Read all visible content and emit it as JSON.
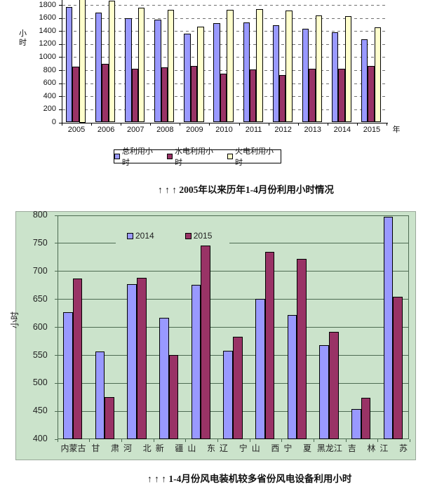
{
  "page": {
    "caption_top": "↑ ↑ ↑  2005年以来历年1-4月份利用小时情况",
    "caption_bottom": "↑ ↑ ↑  1-4月份风电装机较多省份风电设备利用小时"
  },
  "chart_data": [
    {
      "type": "bar",
      "title": "",
      "ylabel": "小时",
      "xlabel": "年",
      "ylim": [
        0,
        2000
      ],
      "yticks": [
        0,
        200,
        400,
        600,
        800,
        1000,
        1200,
        1400,
        1600,
        1800
      ],
      "grid": "horizontal dashed, chart clipped above 1800 by screenshot edge",
      "legend_position": "bottom boxed",
      "categories": [
        "2005",
        "2006",
        "2007",
        "2008",
        "2009",
        "2010",
        "2011",
        "2012",
        "2013",
        "2014",
        "2015"
      ],
      "series": [
        {
          "name": "总利用小时",
          "color": "#9999FF",
          "values": [
            1765,
            1685,
            1595,
            1570,
            1360,
            1520,
            1535,
            1485,
            1440,
            1385,
            1275
          ]
        },
        {
          "name": "水电利用小时",
          "color": "#993366",
          "values": [
            850,
            895,
            820,
            840,
            860,
            745,
            810,
            730,
            825,
            820,
            870
          ]
        },
        {
          "name": "火电利用小时",
          "color": "#FFFFCC",
          "values": [
            1925,
            1860,
            1755,
            1725,
            1470,
            1720,
            1740,
            1715,
            1640,
            1625,
            1460
          ]
        }
      ]
    },
    {
      "type": "bar",
      "title": "",
      "ylabel": "小时",
      "xlabel": "",
      "ylim": [
        400,
        800
      ],
      "yticks": [
        400,
        450,
        500,
        550,
        600,
        650,
        700,
        750,
        800
      ],
      "grid": "horizontal solid on light-green panel",
      "legend_position": "top inside",
      "panel_color": "#CBE3CB",
      "categories": [
        "内蒙古",
        "甘肃",
        "河北",
        "新疆",
        "山东",
        "辽宁",
        "山西",
        "宁夏",
        "黑龙江",
        "吉林",
        "江苏"
      ],
      "series": [
        {
          "name": "2014",
          "color": "#9999FF",
          "values": [
            626,
            556,
            676,
            616,
            675,
            557,
            650,
            622,
            567,
            453,
            797
          ]
        },
        {
          "name": "2015",
          "color": "#993366",
          "values": [
            686,
            475,
            688,
            550,
            746,
            582,
            734,
            722,
            591,
            474,
            654
          ]
        }
      ]
    }
  ]
}
